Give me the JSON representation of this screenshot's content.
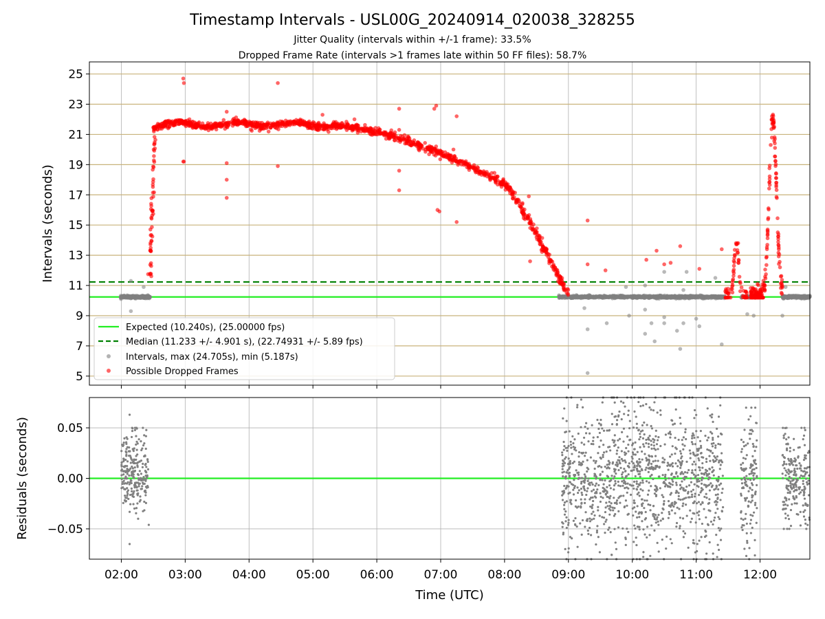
{
  "title": "Timestamp Intervals - USL00G_20240914_020038_328255",
  "subtitle_1": "Jitter Quality (intervals within +/-1 frame): 33.5%",
  "subtitle_2": "Dropped Frame Rate (intervals >1 frames late within 50 FF files): 58.7%",
  "colors": {
    "expected": "#22ee22",
    "median": "#008000",
    "intervals": "#808080",
    "dropped": "#ff0000",
    "hgrid_top": "#c8b27a",
    "grid": "#b0b0b0"
  },
  "chart_data": [
    {
      "type": "scatter",
      "panel": "top",
      "title": "",
      "xlabel": "",
      "ylabel": "Intervals (seconds)",
      "x_unit": "hours UTC",
      "xlim": [
        1.5,
        12.78
      ],
      "ylim": [
        4.4,
        25.8
      ],
      "y_ticks": [
        5,
        7,
        9,
        11,
        13,
        15,
        17,
        19,
        21,
        23,
        25
      ],
      "x_ticks": [
        2,
        3,
        4,
        5,
        6,
        7,
        8,
        9,
        10,
        11,
        12
      ],
      "grid": true,
      "legend_position": "lower-left",
      "lines": [
        {
          "name": "Expected (10.240s), (25.00000 fps)",
          "y": 10.24,
          "style": "solid",
          "color": "#22ee22"
        },
        {
          "name": "Median (11.233 +/- 4.901 s), (22.74931 +/- 5.89 fps)",
          "y": 11.233,
          "style": "dashed",
          "color": "#008000"
        }
      ],
      "series": [
        {
          "name": "Intervals, max (24.705s), min (5.187s)",
          "color": "#808080"
        },
        {
          "name": "Possible Dropped Frames",
          "color": "#ff0000"
        }
      ],
      "intervals_outliers": [
        [
          2.15,
          11.3
        ],
        [
          2.15,
          9.3
        ],
        [
          2.35,
          10.9
        ],
        [
          9.25,
          9.5
        ],
        [
          9.3,
          8.1
        ],
        [
          9.3,
          5.2
        ],
        [
          9.6,
          8.5
        ],
        [
          9.9,
          10.9
        ],
        [
          9.95,
          9.0
        ],
        [
          10.2,
          11.0
        ],
        [
          10.2,
          9.4
        ],
        [
          10.2,
          7.8
        ],
        [
          10.3,
          8.5
        ],
        [
          10.35,
          7.3
        ],
        [
          10.5,
          11.9
        ],
        [
          10.5,
          8.9
        ],
        [
          10.5,
          8.5
        ],
        [
          10.7,
          8.0
        ],
        [
          10.75,
          6.8
        ],
        [
          10.8,
          10.7
        ],
        [
          10.8,
          8.5
        ],
        [
          10.85,
          11.9
        ],
        [
          11.0,
          8.8
        ],
        [
          11.05,
          8.3
        ],
        [
          11.3,
          11.5
        ],
        [
          11.4,
          7.1
        ],
        [
          11.8,
          9.1
        ],
        [
          11.9,
          9.0
        ],
        [
          12.35,
          9.0
        ],
        [
          12.4,
          10.9
        ]
      ],
      "dropped_outliers": [
        [
          2.97,
          24.7
        ],
        [
          2.98,
          24.4
        ],
        [
          2.97,
          19.2
        ],
        [
          2.98,
          19.2
        ],
        [
          3.65,
          22.5
        ],
        [
          3.65,
          19.1
        ],
        [
          3.65,
          18.0
        ],
        [
          3.65,
          16.8
        ],
        [
          4.45,
          24.4
        ],
        [
          4.45,
          18.9
        ],
        [
          5.15,
          22.3
        ],
        [
          5.65,
          22.0
        ],
        [
          6.35,
          22.7
        ],
        [
          6.35,
          21.3
        ],
        [
          6.35,
          18.6
        ],
        [
          6.35,
          17.3
        ],
        [
          6.9,
          22.7
        ],
        [
          6.93,
          22.9
        ],
        [
          6.95,
          16.0
        ],
        [
          6.98,
          15.9
        ],
        [
          7.25,
          22.2
        ],
        [
          7.25,
          15.2
        ],
        [
          7.2,
          20.0
        ],
        [
          8.38,
          16.9
        ],
        [
          8.4,
          12.6
        ],
        [
          9.3,
          15.3
        ],
        [
          9.3,
          12.4
        ],
        [
          9.58,
          12.0
        ],
        [
          10.22,
          12.7
        ],
        [
          10.38,
          13.3
        ],
        [
          10.5,
          12.4
        ],
        [
          10.6,
          12.5
        ],
        [
          10.75,
          13.6
        ],
        [
          11.05,
          12.1
        ],
        [
          11.4,
          13.4
        ]
      ]
    },
    {
      "type": "scatter",
      "panel": "bottom",
      "title": "",
      "xlabel": "Time (UTC)",
      "ylabel": "Residuals (seconds)",
      "xlim": [
        1.5,
        12.78
      ],
      "ylim": [
        -0.08,
        0.08
      ],
      "y_ticks": [
        0.05,
        0.0,
        -0.05
      ],
      "y_tick_labels": [
        "0.05",
        "0.00",
        "−0.05"
      ],
      "x_tick_labels": [
        "02:00",
        "03:00",
        "04:00",
        "05:00",
        "06:00",
        "07:00",
        "08:00",
        "09:00",
        "10:00",
        "11:00",
        "12:00"
      ],
      "grid": true,
      "zero_line": {
        "y": 0.0,
        "color": "#22ee22"
      },
      "clusters": [
        {
          "x_range": [
            2.0,
            2.42
          ],
          "y_range": [
            -0.04,
            0.05
          ],
          "count": 260
        },
        {
          "x_range": [
            8.9,
            11.42
          ],
          "y_range": [
            -0.08,
            0.08
          ],
          "count": 1200
        },
        {
          "x_range": [
            11.7,
            11.95
          ],
          "y_range": [
            -0.08,
            0.07
          ],
          "count": 140
        },
        {
          "x_range": [
            12.35,
            12.78
          ],
          "y_range": [
            -0.05,
            0.05
          ],
          "count": 220
        }
      ],
      "sparse_points": [
        [
          2.13,
          0.063
        ],
        [
          2.13,
          -0.065
        ],
        [
          2.43,
          -0.046
        ],
        [
          9.2,
          0.078
        ],
        [
          8.95,
          -0.07
        ],
        [
          10.1,
          0.08
        ],
        [
          9.75,
          -0.07
        ]
      ]
    }
  ]
}
